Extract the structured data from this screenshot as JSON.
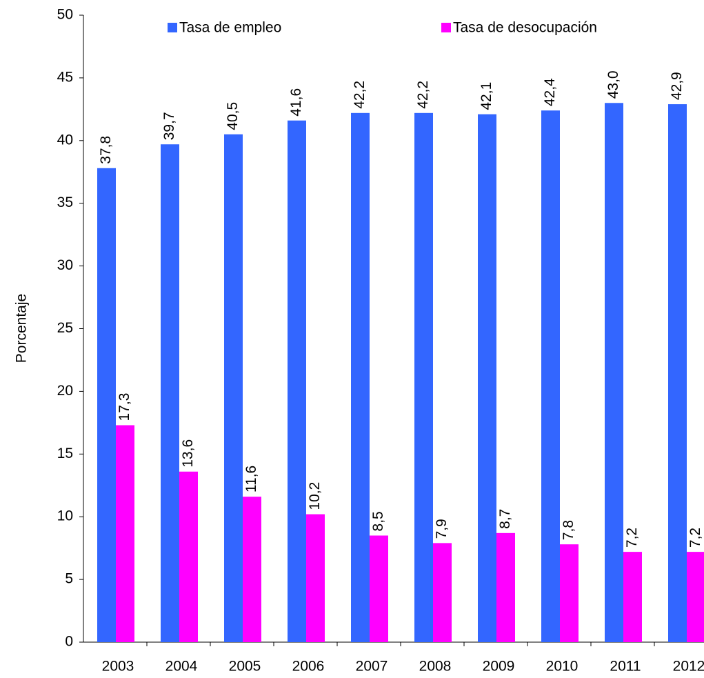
{
  "chart_data": {
    "type": "bar",
    "y_label": "Porcentaje",
    "categories": [
      "2003",
      "2004",
      "2005",
      "2006",
      "2007",
      "2008",
      "2009",
      "2010",
      "2011",
      "2012"
    ],
    "series": [
      {
        "name": "Tasa de empleo",
        "color": "#3366ff",
        "values": [
          37.8,
          39.7,
          40.5,
          41.6,
          42.2,
          42.2,
          42.1,
          42.4,
          43.0,
          42.9
        ],
        "value_labels": [
          "37,8",
          "39,7",
          "40,5",
          "41,6",
          "42,2",
          "42,2",
          "42,1",
          "42,4",
          "43,0",
          "42,9"
        ]
      },
      {
        "name": "Tasa de desocupación",
        "color": "#ff00ff",
        "values": [
          17.3,
          13.6,
          11.6,
          10.2,
          8.5,
          7.9,
          8.7,
          7.8,
          7.2,
          7.2
        ],
        "value_labels": [
          "17,3",
          "13,6",
          "11,6",
          "10,2",
          "8,5",
          "7,9",
          "8,7",
          "7,8",
          "7,2",
          "7,2"
        ]
      }
    ],
    "ylim": [
      0,
      50
    ],
    "yticks": [
      0,
      5,
      10,
      15,
      20,
      25,
      30,
      35,
      40,
      45,
      50
    ],
    "legend": "top"
  }
}
